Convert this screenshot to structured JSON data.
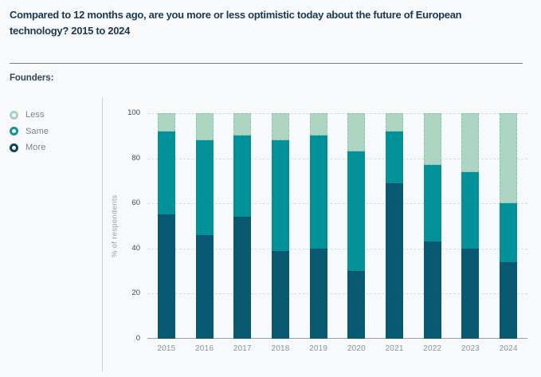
{
  "title": "Compared to 12 months ago, are you more or less optimistic today about the future of European technology? 2015 to 2024",
  "audience_label": "Founders:",
  "legend": [
    {
      "label": "Less",
      "color": "#a8d2c0"
    },
    {
      "label": "Same",
      "color": "#11949e"
    },
    {
      "label": "More",
      "color": "#0d4558"
    }
  ],
  "chart_data": {
    "type": "bar",
    "stacked": true,
    "stack_order": "bottom-to-top",
    "categories": [
      "2015",
      "2016",
      "2017",
      "2018",
      "2019",
      "2020",
      "2021",
      "2022",
      "2023",
      "2024"
    ],
    "series": [
      {
        "name": "More",
        "color": "#075a71",
        "values": [
          55,
          46,
          54,
          39,
          40,
          30,
          69,
          43,
          40,
          34
        ]
      },
      {
        "name": "Same",
        "color": "#009199",
        "values": [
          37,
          42,
          36,
          49,
          50,
          53,
          23,
          34,
          34,
          26
        ]
      },
      {
        "name": "Less",
        "color": "#add5c4",
        "values": [
          8,
          12,
          10,
          12,
          10,
          17,
          8,
          23,
          26,
          40
        ]
      }
    ],
    "xlabel": "",
    "ylabel": "% of respondents",
    "ylim": [
      0,
      100
    ],
    "yticks": [
      0,
      20,
      40,
      60,
      80,
      100
    ],
    "grid": "horizontal-dashed",
    "legend_position": "left"
  }
}
